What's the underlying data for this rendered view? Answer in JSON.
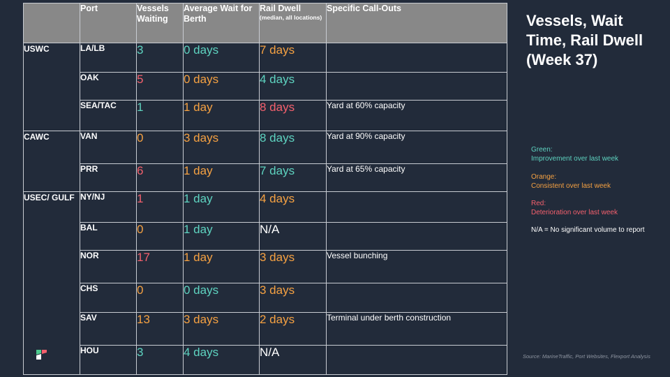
{
  "title": "Vessels, Wait Time, Rail Dwell (Week 37)",
  "headers": {
    "port": "Port",
    "vessels": "Vessels Waiting",
    "wait": "Average Wait for Berth",
    "rail": "Rail Dwell",
    "rail_sub": "(median, all locations)",
    "callouts": "Specific Call-Outs"
  },
  "regions": [
    "USWC",
    "CAWC",
    "USEC/ GULF"
  ],
  "rows": [
    {
      "port": "LA/LB",
      "vessels": "3",
      "wait": "0 days",
      "rail": "7 days",
      "note": ""
    },
    {
      "port": "OAK",
      "vessels": "5",
      "wait": "0 days",
      "rail": "4 days",
      "note": ""
    },
    {
      "port": "SEA/TAC",
      "vessels": "1",
      "wait": "1 day",
      "rail": "8 days",
      "note": "Yard at 60% capacity"
    },
    {
      "port": "VAN",
      "vessels": "0",
      "wait": "3 days",
      "rail": "8 days",
      "note": "Yard at 90% capacity"
    },
    {
      "port": "PRR",
      "vessels": "6",
      "wait": "1 day",
      "rail": "7 days",
      "note": "Yard at 65% capacity"
    },
    {
      "port": "NY/NJ",
      "vessels": "1",
      "wait": "1 day",
      "rail": "4 days",
      "note": ""
    },
    {
      "port": "BAL",
      "vessels": "0",
      "wait": "1 day",
      "rail": "N/A",
      "note": ""
    },
    {
      "port": "NOR",
      "vessels": "17",
      "wait": "1 day",
      "rail": "3 days",
      "note": "Vessel bunching"
    },
    {
      "port": "CHS",
      "vessels": "0",
      "wait": "0 days",
      "rail": "3 days",
      "note": ""
    },
    {
      "port": "SAV",
      "vessels": "13",
      "wait": "3 days",
      "rail": "2 days",
      "note": "Terminal under berth construction"
    },
    {
      "port": "HOU",
      "vessels": "3",
      "wait": "4 days",
      "rail": "N/A",
      "note": ""
    }
  ],
  "legend": {
    "green_title": "Green:",
    "green_desc": "Improvement over last week",
    "orange_title": "Orange:",
    "orange_desc": "Consistent over last week",
    "red_title": "Red:",
    "red_desc": "Deterioration over last week",
    "na_note": "N/A = No significant volume to report"
  },
  "colors": {
    "green": "#5ed3c0",
    "orange": "#f5a142",
    "red": "#f4606d",
    "background": "#222b3a",
    "header": "#888888"
  },
  "source": "Source: MarineTraffic, Port Websites, Flexport Analysis",
  "logo_icon": "flexport-logo-icon"
}
